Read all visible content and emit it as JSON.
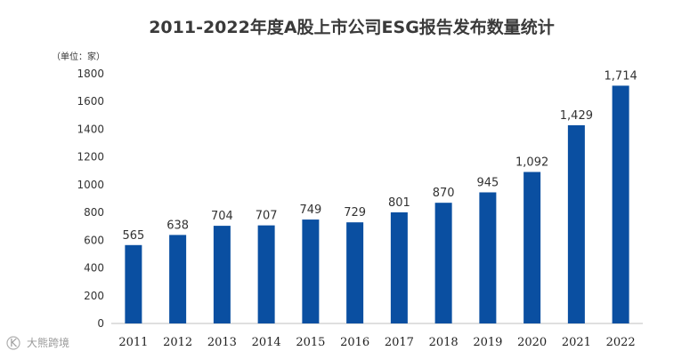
{
  "chart_data": {
    "type": "bar",
    "title": "2011-2022年度A股上市公司ESG报告发布数量统计",
    "unit_label": "（单位：家）",
    "xlabel": "",
    "ylabel": "",
    "categories": [
      "2011",
      "2012",
      "2013",
      "2014",
      "2015",
      "2016",
      "2017",
      "2018",
      "2019",
      "2020",
      "2021",
      "2022"
    ],
    "values": [
      565,
      638,
      704,
      707,
      749,
      729,
      801,
      870,
      945,
      1092,
      1429,
      1714
    ],
    "data_labels": [
      "565",
      "638",
      "704",
      "707",
      "749",
      "729",
      "801",
      "870",
      "945",
      "1,092",
      "1,429",
      "1,714"
    ],
    "yticks": [
      0,
      200,
      400,
      600,
      800,
      1000,
      1200,
      1400,
      1600,
      1800
    ],
    "ylim": [
      0,
      1800
    ],
    "grid": false,
    "legend": "none",
    "bar_color": "#0a4fa1"
  },
  "watermark": {
    "logo_text": "K",
    "text": "大熊跨境"
  }
}
